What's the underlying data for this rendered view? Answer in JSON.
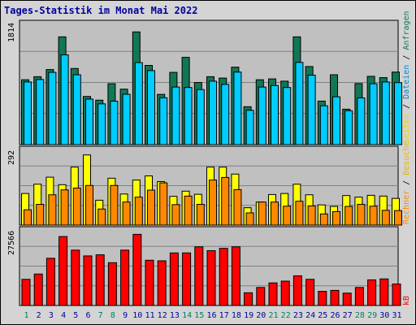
{
  "title": "Tages-Statistik im Monat Mai 2022",
  "colors": {
    "background": "#d4d4d4",
    "plot_bg": "#c0c0c0",
    "gridline": "#808080",
    "title": "#0000a0",
    "anfragen": "#117755",
    "dateien": "#00ccff",
    "seiten": "#ffff00",
    "besuche": "#ff8800",
    "rechner": "#ff8800",
    "kb": "#ff0000",
    "weekend_day": "#00805c",
    "weekday_day": "#0000a0"
  },
  "chart_data": [
    {
      "type": "bar",
      "panel": "top",
      "ymax_label": "1814",
      "right_label": {
        "anfragen": "Anfragen",
        "sep1": " / ",
        "dateien": "Dateien",
        "sep2": " / ",
        "seiten": "Seiten"
      },
      "categories": [
        "1",
        "2",
        "3",
        "4",
        "5",
        "6",
        "7",
        "8",
        "9",
        "10",
        "11",
        "12",
        "13",
        "14",
        "15",
        "16",
        "17",
        "18",
        "19",
        "20",
        "21",
        "22",
        "23",
        "24",
        "25",
        "26",
        "27",
        "28",
        "29",
        "30",
        "31"
      ],
      "ylim": [
        0,
        1814
      ],
      "series": [
        {
          "name": "Anfragen",
          "values": [
            972,
            1018,
            1125,
            1615,
            1141,
            722,
            666,
            913,
            831,
            1689,
            1187,
            753,
            1083,
            1308,
            931,
            1018,
            997,
            1161,
            568,
            972,
            985,
            951,
            1615,
            1170,
            652,
            1047,
            531,
            915,
            1023,
            1004,
            1087
          ]
        },
        {
          "name": "Dateien",
          "values": [
            939,
            976,
            1083,
            1345,
            1047,
            682,
            611,
            651,
            755,
            1229,
            1109,
            702,
            863,
            856,
            825,
            951,
            902,
            1087,
            514,
            863,
            885,
            856,
            1232,
            1041,
            582,
            717,
            508,
            700,
            912,
            939,
            929
          ]
        }
      ]
    },
    {
      "type": "bar",
      "panel": "middle",
      "ymax_label": "292",
      "right_label": {
        "rechner": "Rechner",
        "sep1": " / ",
        "besuche": "Besuche"
      },
      "categories": [
        "1",
        "2",
        "3",
        "4",
        "5",
        "6",
        "7",
        "8",
        "9",
        "10",
        "11",
        "12",
        "13",
        "14",
        "15",
        "16",
        "17",
        "18",
        "19",
        "20",
        "21",
        "22",
        "23",
        "24",
        "25",
        "26",
        "27",
        "28",
        "29",
        "30",
        "31"
      ],
      "ylim": [
        0,
        292
      ],
      "series": [
        {
          "name": "Seiten",
          "values": [
            122,
            158,
            185,
            156,
            224,
            271,
            96,
            181,
            120,
            174,
            190,
            168,
            111,
            131,
            119,
            224,
            224,
            197,
            67,
            89,
            118,
            122,
            158,
            117,
            78,
            72,
            114,
            108,
            115,
            112,
            103
          ]
        },
        {
          "name": "Besuche",
          "values": [
            59,
            80,
            117,
            136,
            143,
            153,
            62,
            153,
            89,
            108,
            135,
            163,
            79,
            112,
            80,
            174,
            184,
            137,
            47,
            89,
            89,
            73,
            92,
            74,
            43,
            52,
            72,
            80,
            73,
            57,
            56
          ]
        }
      ]
    },
    {
      "type": "bar",
      "panel": "bottom",
      "ymax_label": "27566",
      "right_label": {
        "kb": "kB"
      },
      "categories": [
        "1",
        "2",
        "3",
        "4",
        "5",
        "6",
        "7",
        "8",
        "9",
        "10",
        "11",
        "12",
        "13",
        "14",
        "15",
        "16",
        "17",
        "18",
        "19",
        "20",
        "21",
        "22",
        "23",
        "24",
        "25",
        "26",
        "27",
        "28",
        "29",
        "30",
        "31"
      ],
      "ylim": [
        0,
        27566
      ],
      "series": [
        {
          "name": "kB",
          "values": [
            9550,
            11480,
            17230,
            25150,
            20200,
            18100,
            18500,
            15620,
            20200,
            25970,
            16510,
            16300,
            19180,
            19180,
            21410,
            20000,
            20850,
            21410,
            4640,
            6580,
            8240,
            8890,
            10830,
            9550,
            5160,
            5510,
            4510,
            6580,
            9350,
            9700,
            7850
          ]
        }
      ]
    }
  ]
}
